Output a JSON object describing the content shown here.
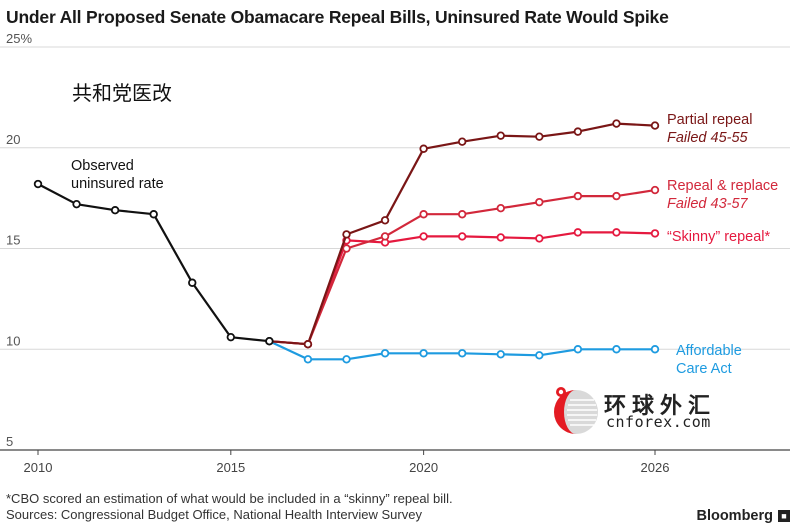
{
  "title": "Under All Proposed Senate Obamacare Repeal Bills, Uninsured Rate Would Spike",
  "watermark": {
    "headline_cn": "共和党医改",
    "site_cn": "环球外汇",
    "site_en": "cnforex.com"
  },
  "footnote": {
    "note": "*CBO scored an estimation of what would be included in a “skinny” repeal bill.",
    "sources": "Sources: Congressional Budget Office, National Health Interview Survey"
  },
  "brand": {
    "name": "Bloomberg",
    "icon": "bloomberg-terminal-icon"
  },
  "colors": {
    "observed": "#111111",
    "partial": "#7a1616",
    "replace": "#d2283b",
    "skinny": "#e5193f",
    "aca": "#1e9be0",
    "grid": "#d8d8d8"
  },
  "chart_data": {
    "type": "line",
    "xlim": [
      2010,
      2026
    ],
    "ylim": [
      5,
      25
    ],
    "x_ticks": [
      "2010",
      "2015",
      "2020",
      "2026"
    ],
    "y_ticks": [
      "5",
      "10",
      "15",
      "20",
      "25%"
    ],
    "grid": true,
    "series": [
      {
        "key": "observed",
        "name": "Observed uninsured rate",
        "label_lines": [
          "Observed",
          "uninsured rate"
        ],
        "italic_line": "",
        "x": [
          2010,
          2011,
          2012,
          2013,
          2014,
          2015,
          2016
        ],
        "y": [
          18.2,
          17.2,
          16.9,
          16.7,
          13.3,
          10.6,
          10.4
        ]
      },
      {
        "key": "aca",
        "name": "Affordable Care Act",
        "label_lines": [
          "Affordable",
          "Care Act"
        ],
        "italic_line": "",
        "x": [
          2016,
          2017,
          2018,
          2019,
          2020,
          2021,
          2022,
          2023,
          2024,
          2025,
          2026
        ],
        "y": [
          10.4,
          9.5,
          9.5,
          9.8,
          9.8,
          9.8,
          9.75,
          9.7,
          10.0,
          10.0,
          10.0
        ]
      },
      {
        "key": "skinny",
        "name": "“Skinny” repeal*",
        "label_lines": [
          "“Skinny” repeal*"
        ],
        "italic_line": "",
        "x": [
          2016,
          2017,
          2018,
          2019,
          2020,
          2021,
          2022,
          2023,
          2024,
          2025,
          2026
        ],
        "y": [
          10.4,
          10.25,
          15.4,
          15.3,
          15.6,
          15.6,
          15.55,
          15.5,
          15.8,
          15.8,
          15.75
        ]
      },
      {
        "key": "replace",
        "name": "Repeal & replace",
        "label_lines": [
          "Repeal & replace"
        ],
        "italic_line": "Failed 43-57",
        "x": [
          2016,
          2017,
          2018,
          2019,
          2020,
          2021,
          2022,
          2023,
          2024,
          2025,
          2026
        ],
        "y": [
          10.4,
          10.25,
          15.0,
          15.6,
          16.7,
          16.7,
          17.0,
          17.3,
          17.6,
          17.6,
          17.9
        ]
      },
      {
        "key": "partial",
        "name": "Partial repeal",
        "label_lines": [
          "Partial repeal"
        ],
        "italic_line": "Failed 45-55",
        "x": [
          2016,
          2017,
          2018,
          2019,
          2020,
          2021,
          2022,
          2023,
          2024,
          2025,
          2026
        ],
        "y": [
          10.4,
          10.25,
          15.7,
          16.4,
          19.95,
          20.3,
          20.6,
          20.55,
          20.8,
          21.2,
          21.1
        ]
      }
    ]
  }
}
